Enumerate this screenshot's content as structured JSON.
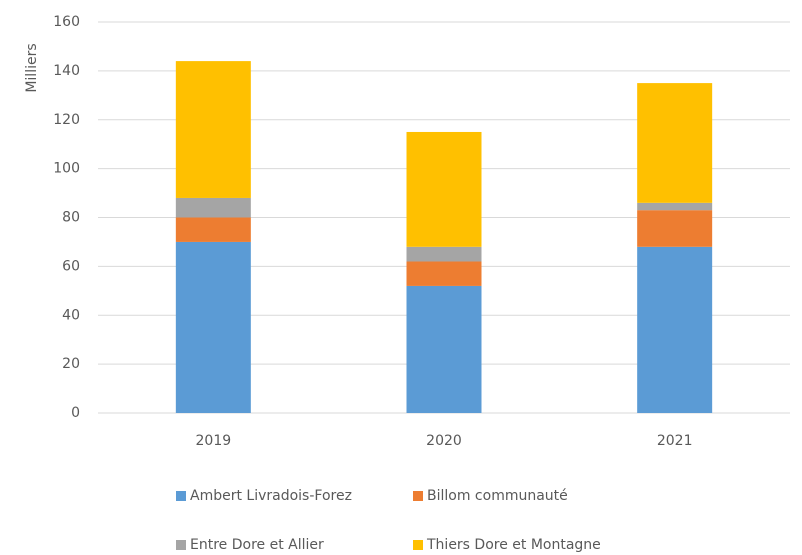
{
  "chart_data": {
    "type": "stacked_bar",
    "y_label": "Milliers",
    "categories": [
      "2019",
      "2020",
      "2021"
    ],
    "series": [
      {
        "name": "Ambert Livradois-Forez",
        "color": "#5b9bd5",
        "values": [
          70,
          52,
          68
        ]
      },
      {
        "name": "Billom communauté",
        "color": "#ed7d31",
        "values": [
          10,
          10,
          15
        ]
      },
      {
        "name": "Entre Dore et Allier",
        "color": "#a5a5a5",
        "values": [
          8,
          6,
          3
        ]
      },
      {
        "name": "Thiers Dore et Montagne",
        "color": "#ffc000",
        "values": [
          56,
          47,
          49
        ]
      }
    ],
    "ylim": [
      0,
      160
    ],
    "yticks": [
      0,
      20,
      40,
      60,
      80,
      100,
      120,
      140,
      160
    ],
    "grid": true,
    "legend": "bottom"
  }
}
